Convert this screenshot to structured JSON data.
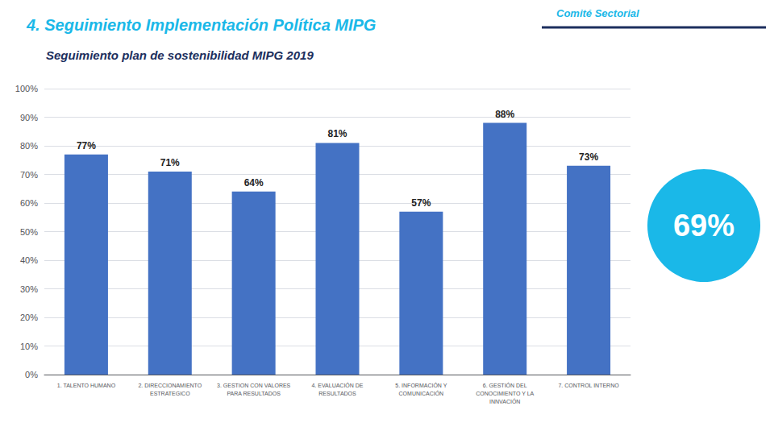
{
  "chart_data": {
    "type": "bar",
    "title": "4. Seguimiento Implementación Política MIPG",
    "subtitle": "Seguimiento plan de sostenibilidad MIPG 2019",
    "annotations": [
      {
        "text": "Comité Sectorial"
      },
      {
        "text": "69%",
        "color": "#1AB8E8"
      }
    ],
    "categories": [
      "1. TALENTO HUMANO",
      "2. DIRECCIONAMIENTO\nESTRATEGICO",
      "3. GESTION CON VALORES\nPARA RESULTADOS",
      "4. EVALUACIÓN DE\nRESULTADOS",
      "5. INFORMACIÓN Y\nCOMUNICACIÓN",
      "6. GESTIÓN DEL\nCONOCIMIENTO Y LA\nINNVACIÓN",
      "7. CONTROL INTERNO"
    ],
    "values": [
      77,
      71,
      64,
      81,
      57,
      88,
      73
    ],
    "value_labels": [
      "77%",
      "71%",
      "64%",
      "81%",
      "57%",
      "88%",
      "73%"
    ],
    "data_labels": true,
    "color": "#4472C4",
    "ylim": [
      0,
      100
    ],
    "yticks": [
      {
        "value": 0,
        "label": "0%"
      },
      {
        "value": 10,
        "label": "10%"
      },
      {
        "value": 20,
        "label": "20%"
      },
      {
        "value": 30,
        "label": "30%"
      },
      {
        "value": 40,
        "label": "40%"
      },
      {
        "value": 50,
        "label": "50%"
      },
      {
        "value": 60,
        "label": "60%"
      },
      {
        "value": 70,
        "label": "70%"
      },
      {
        "value": 80,
        "label": "80%"
      },
      {
        "value": 90,
        "label": "90%"
      },
      {
        "value": 100,
        "label": "100%"
      }
    ],
    "grid": true
  }
}
